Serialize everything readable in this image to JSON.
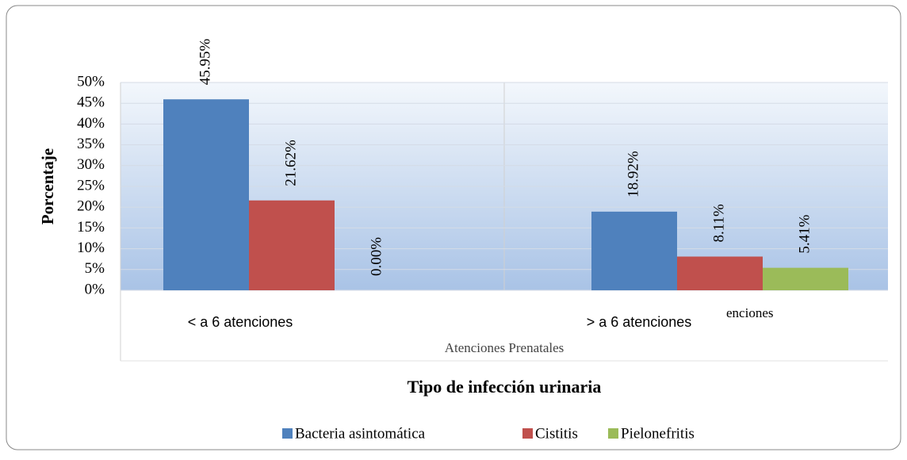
{
  "chart_data": {
    "type": "bar",
    "y_label": "Porcentaje",
    "x_label": "Tipo de infección urinaria",
    "x_sublabel": "Atenciones Prenatales",
    "annotation": "enciones",
    "categories": [
      "< a 6 atenciones",
      "> a 6 atenciones"
    ],
    "series": [
      {
        "name": "Bacteria asintomática",
        "color": "#4f81bd",
        "values": [
          45.95,
          18.92
        ],
        "value_labels": [
          "45.95%",
          "18.92%"
        ]
      },
      {
        "name": "Cistitis",
        "color": "#c0504d",
        "values": [
          21.62,
          8.11
        ],
        "value_labels": [
          "21.62%",
          "8.11%"
        ]
      },
      {
        "name": "Pielonefritis",
        "color": "#9bbb59",
        "values": [
          0,
          5.41
        ],
        "value_labels": [
          "0.00%",
          "5.41%"
        ]
      }
    ],
    "ylim": [
      0,
      50
    ],
    "yticks": [
      {
        "value": 0,
        "label": "0%"
      },
      {
        "value": 5,
        "label": "5%"
      },
      {
        "value": 10,
        "label": "10%"
      },
      {
        "value": 15,
        "label": "15%"
      },
      {
        "value": 20,
        "label": "20%"
      },
      {
        "value": 25,
        "label": "25%"
      },
      {
        "value": 30,
        "label": "30%"
      },
      {
        "value": 35,
        "label": "35%"
      },
      {
        "value": 40,
        "label": "40%"
      },
      {
        "value": 45,
        "label": "45%"
      },
      {
        "value": 50,
        "label": "50%"
      }
    ],
    "grid": true,
    "legend": "bottom"
  }
}
